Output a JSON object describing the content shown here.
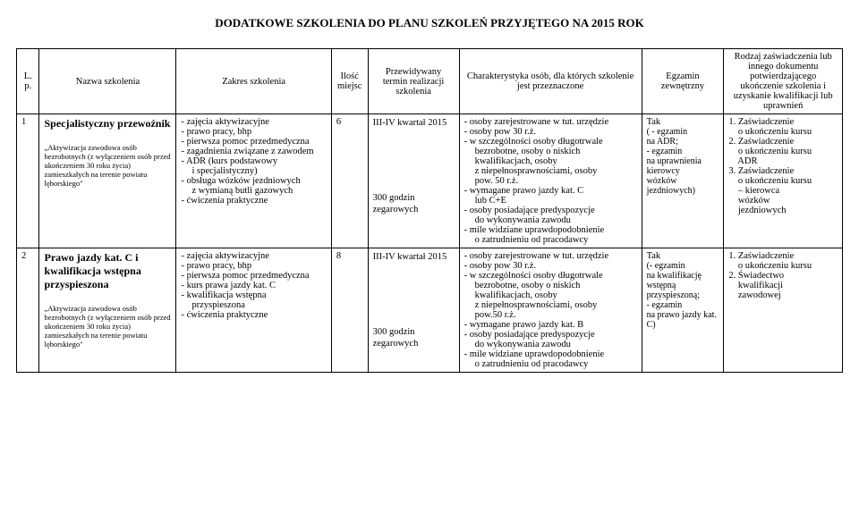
{
  "title": "DODATKOWE SZKOLENIA DO PLANU SZKOLEŃ PRZYJĘTEGO NA 2015 ROK",
  "headers": {
    "lp": "L. p.",
    "name": "Nazwa szkolenia",
    "scope": "Zakres szkolenia",
    "count": "Ilość miejsc",
    "term": "Przewidywany termin realizacji szkolenia",
    "char": "Charakterystyka osób, dla których szkolenie jest przeznaczone",
    "exam": "Egzamin zewnętrzny",
    "cert": "Rodzaj zaświadczenia lub innego dokumentu potwierdzającego ukończenie szkolenia  i uzyskanie kwalifikacji lub uprawnień"
  },
  "rows": [
    {
      "lp": "1",
      "name_main": "Specjalistyczny przewoźnik",
      "name_sub": "„Aktywizacja zawodowa osób bezrobotnych (z wyłączeniem osób przed ukończeniem 30 roku życia) zamieszkałych na terenie powiatu lęborskiego\"",
      "scope": [
        "zajęcia aktywizacyjne",
        "prawo pracy, bhp",
        "pierwsza pomoc przedmedyczna",
        "zagadnienia związane z zawodem",
        "ADR (kurs podstawowy",
        "  i specjalistyczny)",
        "obsługa wózków jezdniowych",
        "  z wymianą butli gazowych",
        "ćwiczenia praktyczne"
      ],
      "count": "6",
      "term_top": "III-IV kwartał 2015",
      "term_bottom": "300 godzin zegarowych",
      "char": [
        "osoby zarejestrowane w tut. urzędzie",
        "osoby pow 30 r.ż.",
        "w szczególności osoby długotrwale",
        "  bezrobotne, osoby o niskich",
        "  kwalifikacjach, osoby",
        "  z niepełnosprawnościami, osoby",
        "  pow. 50 r.ż.",
        "wymagane prawo jazdy kat. C",
        "  lub C+E",
        "osoby posiadające predyspozycje",
        "  do wykonywania zawodu",
        "mile widziane uprawdopodobnienie",
        "  o zatrudnieniu od pracodawcy"
      ],
      "exam_top": "Tak",
      "exam_lines": [
        "( - egzamin",
        "na ADR;",
        "- egzamin",
        "na uprawnienia",
        "kierowcy",
        "wózków",
        "jezdniowych)"
      ],
      "cert": [
        "1. Zaświadczenie",
        "    o ukończeniu kursu",
        "2. Zaświadczenie",
        "    o ukończeniu kursu",
        "    ADR",
        "3. Zaświadczenie",
        "    o ukończeniu kursu",
        "    – kierowca",
        "    wózków",
        "    jezdniowych"
      ]
    },
    {
      "lp": "2",
      "name_main": "Prawo jazdy kat. C i kwalifikacja wstępna przyspieszona",
      "name_sub": "„Aktywizacja zawodowa osób bezrobotnych (z wyłączeniem osób przed ukończeniem 30 roku życia) zamieszkałych na terenie powiatu lęborskiego\"",
      "scope": [
        "zajęcia aktywizacyjne",
        "prawo pracy, bhp",
        "pierwsza pomoc przedmedyczna",
        "kurs prawa jazdy kat. C",
        "kwalifikacja wstępna",
        "  przyspieszona",
        "ćwiczenia praktyczne"
      ],
      "count": "8",
      "term_top": "III-IV kwartał 2015",
      "term_bottom": "300 godzin zegarowych",
      "char": [
        "osoby zarejestrowane w tut. urzędzie",
        "osoby pow 30 r.ż.",
        "w szczególności osoby długotrwale",
        "  bezrobotne, osoby o niskich",
        "  kwalifikacjach, osoby",
        "  z niepełnosprawnościami, osoby",
        "  pow.50 r.ż.",
        "wymagane prawo jazdy kat. B",
        "osoby posiadające predyspozycje",
        "  do wykonywania zawodu",
        "mile widziane uprawdopodobnienie",
        "  o zatrudnieniu od pracodawcy"
      ],
      "exam_top": "Tak",
      "exam_lines": [
        "(- egzamin",
        "na kwalifikację",
        "wstępną",
        "przyspieszoną;",
        "- egzamin",
        "na prawo jazdy kat.",
        "C)"
      ],
      "cert": [
        "1. Zaświadczenie",
        "    o ukończeniu kursu",
        "2. Świadectwo",
        "    kwalifikacji",
        "    zawodowej"
      ]
    }
  ]
}
